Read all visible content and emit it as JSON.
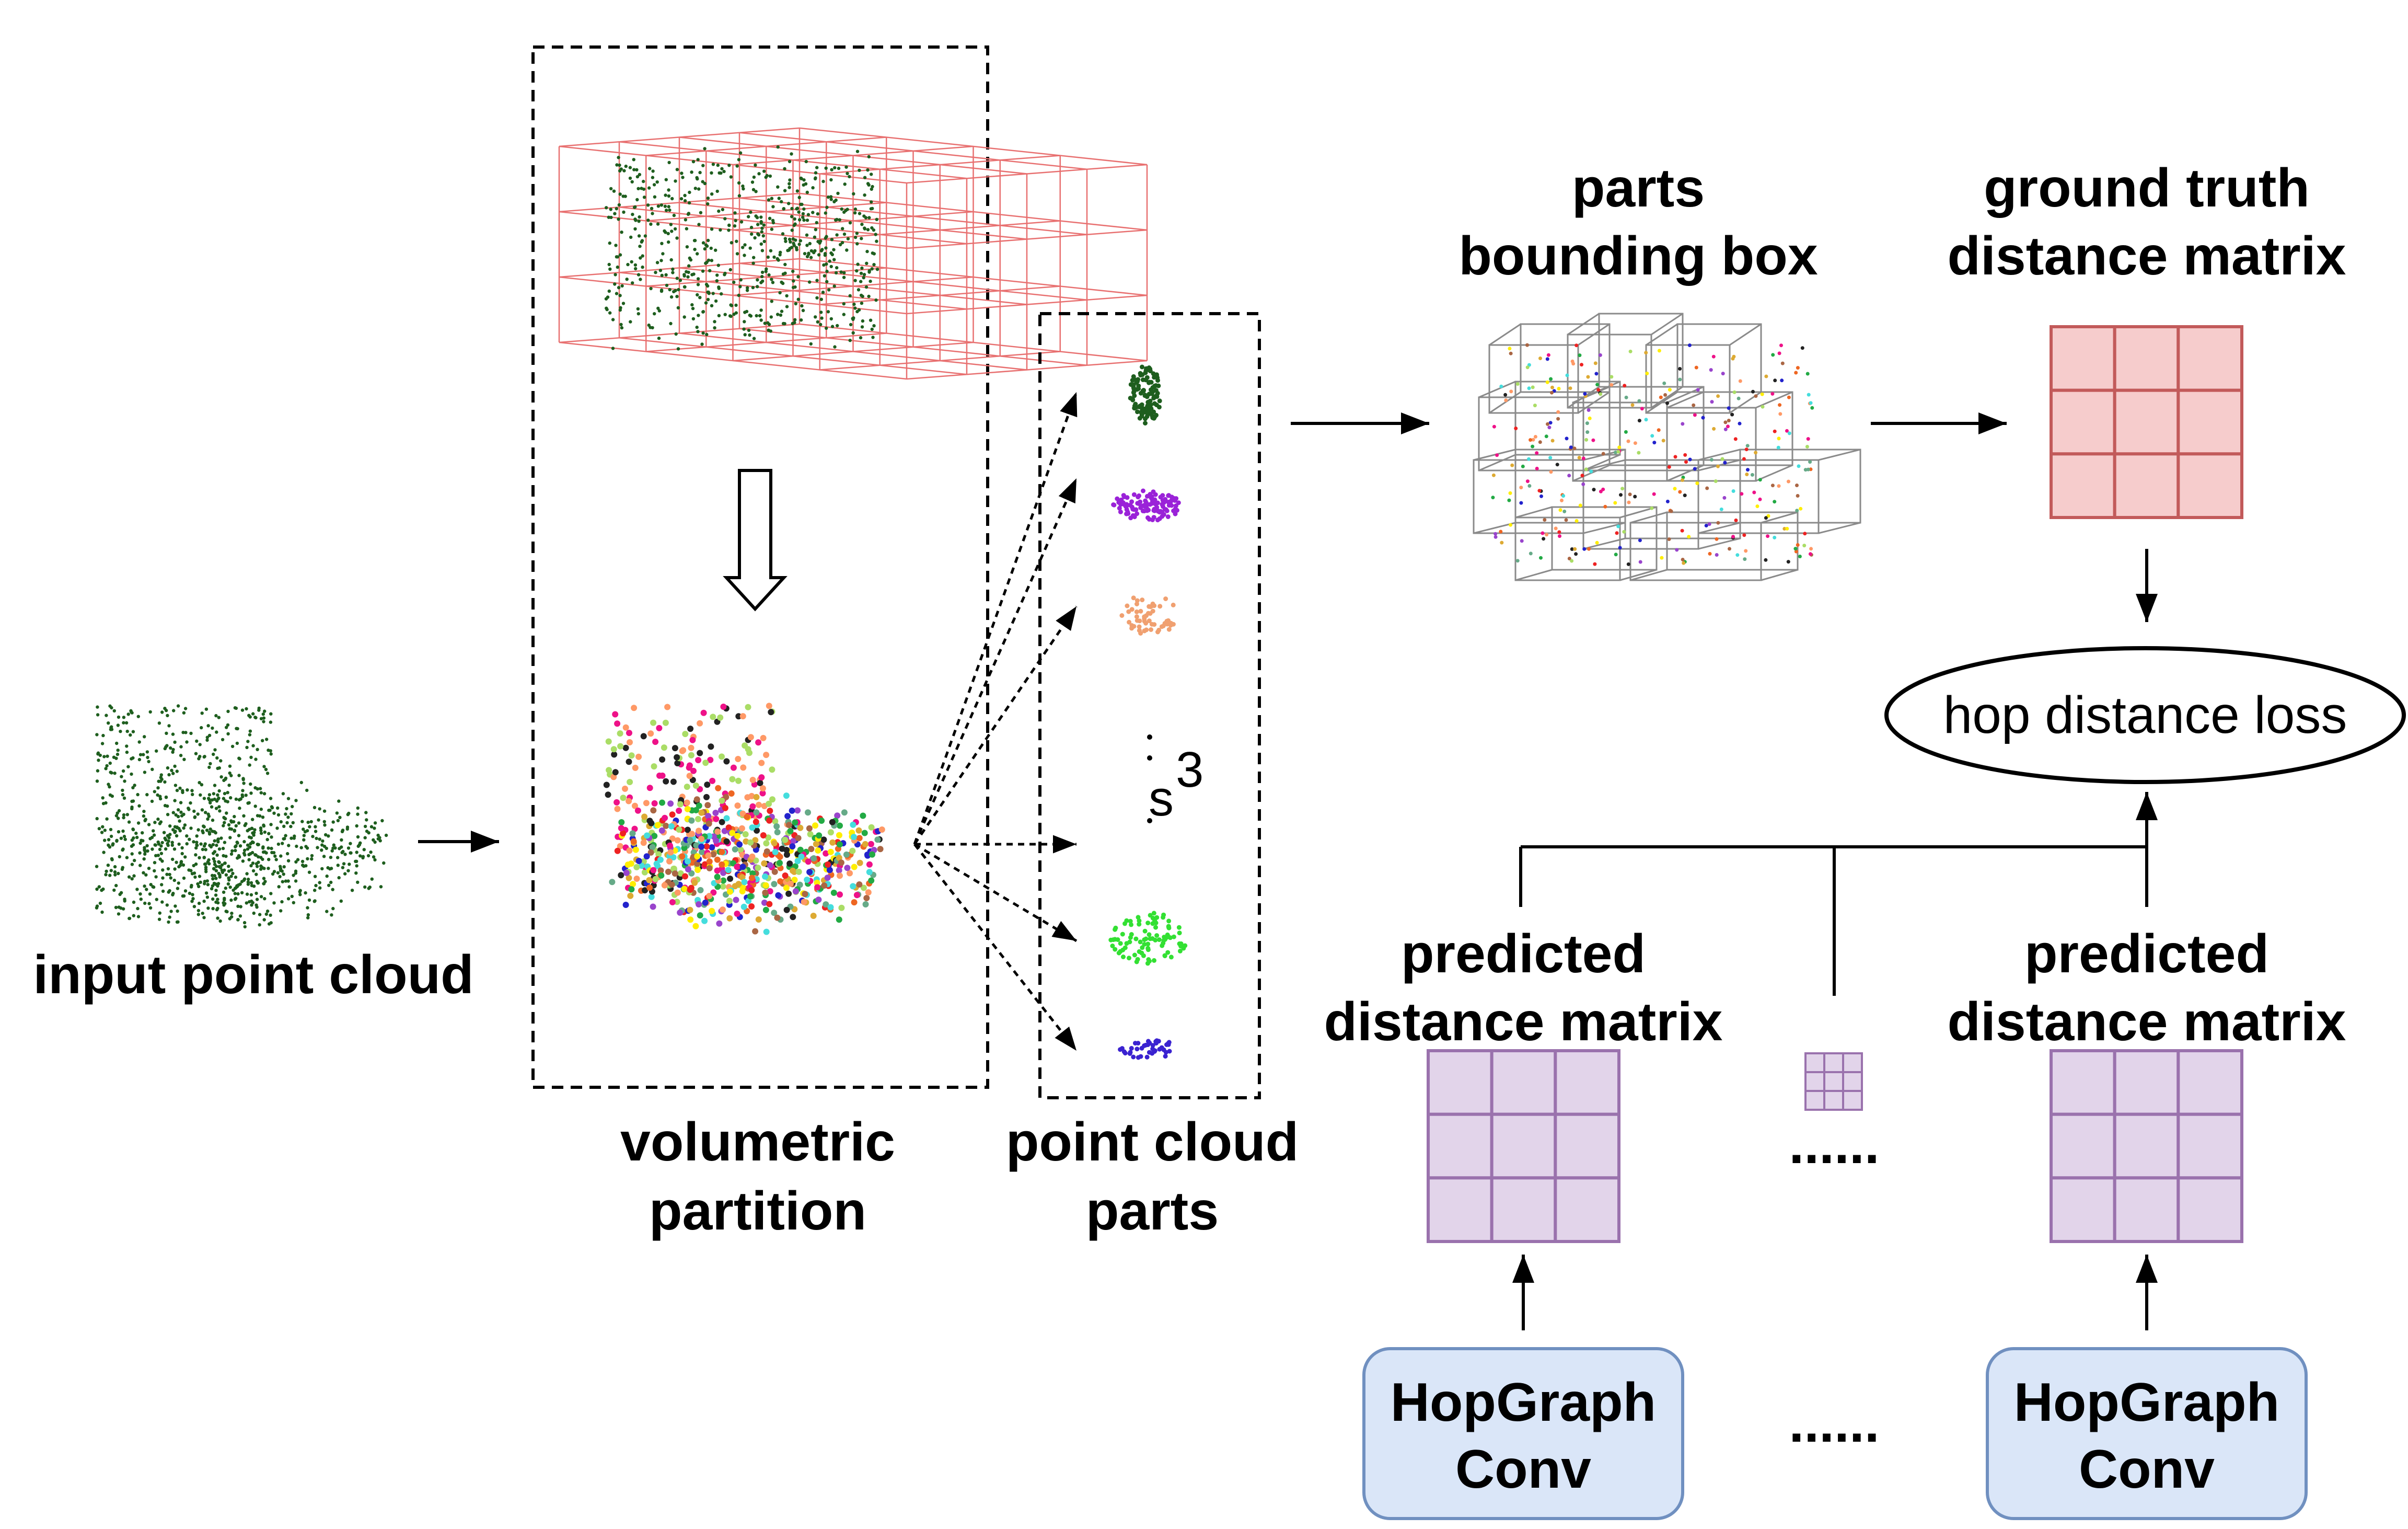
{
  "labels": {
    "input_point_cloud": "input point cloud",
    "volumetric": "volumetric",
    "partition": "partition",
    "point_cloud": "point cloud",
    "parts": "parts",
    "parts_bbox_line1": "parts",
    "parts_bbox_line2": "bounding box",
    "gt_line1": "ground truth",
    "gt_line2": "distance matrix",
    "loss": "hop distance loss",
    "pred_left_line1": "predicted",
    "pred_left_line2": "distance matrix",
    "pred_right_line1": "predicted",
    "pred_right_line2": "distance matrix",
    "ellipsis_mid": "......",
    "ellipsis_bottom": "......",
    "s_label": "s",
    "s_exponent": "3",
    "hopgraph_left_line1": "HopGraph",
    "hopgraph_left_line2": "Conv",
    "hopgraph_right_line1": "HopGraph",
    "hopgraph_right_line2": "Conv"
  },
  "colors": {
    "point_green": "#1e5e1e",
    "grid_red": "#e87070",
    "gt_fill": "#f6cccc",
    "gt_stroke": "#c25a5a",
    "pred_fill": "#e2d4ea",
    "pred_stroke": "#9a72ad",
    "conv_fill": "#dae6f8",
    "conv_stroke": "#7090c0",
    "part_colors": [
      "#1e5e1e",
      "#9a22d8",
      "#f0a070",
      "#33e033",
      "#3a22d0"
    ],
    "segment_palette": [
      "#ff9966",
      "#aadd66",
      "#ee1188",
      "#222222",
      "#44dddd",
      "#2222cc",
      "#ee2222",
      "#ffee00",
      "#22aa44",
      "#ee6622",
      "#9944cc",
      "#66aa88",
      "#aa6644",
      "#ddaa33"
    ]
  }
}
